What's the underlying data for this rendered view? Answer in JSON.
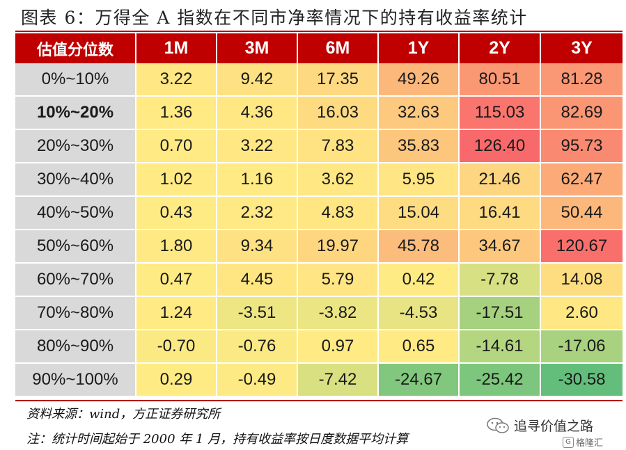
{
  "title": "图表 6：万得全 A 指数在不同市净率情况下的持有收益率统计",
  "table": {
    "headers": [
      "估值分位数",
      "1M",
      "3M",
      "6M",
      "1Y",
      "2Y",
      "3Y"
    ],
    "rows": [
      {
        "label": "0%~10%",
        "bold": false,
        "values": [
          "3.22",
          "9.42",
          "17.35",
          "49.26",
          "80.51",
          "81.28"
        ]
      },
      {
        "label": "10%~20%",
        "bold": true,
        "values": [
          "1.36",
          "4.36",
          "16.03",
          "32.63",
          "115.03",
          "82.69"
        ]
      },
      {
        "label": "20%~30%",
        "bold": false,
        "values": [
          "0.70",
          "3.22",
          "7.83",
          "35.83",
          "126.40",
          "95.73"
        ]
      },
      {
        "label": "30%~40%",
        "bold": false,
        "values": [
          "1.02",
          "1.16",
          "3.62",
          "5.95",
          "21.46",
          "62.47"
        ]
      },
      {
        "label": "40%~50%",
        "bold": false,
        "values": [
          "0.43",
          "2.32",
          "4.83",
          "15.04",
          "16.41",
          "50.44"
        ]
      },
      {
        "label": "50%~60%",
        "bold": false,
        "values": [
          "1.80",
          "9.34",
          "19.97",
          "45.78",
          "34.67",
          "120.67"
        ]
      },
      {
        "label": "60%~70%",
        "bold": false,
        "values": [
          "0.47",
          "4.45",
          "5.79",
          "0.42",
          "-7.78",
          "14.08"
        ]
      },
      {
        "label": "70%~80%",
        "bold": false,
        "values": [
          "1.24",
          "-3.51",
          "-3.82",
          "-4.53",
          "-17.51",
          "2.60"
        ]
      },
      {
        "label": "80%~90%",
        "bold": false,
        "values": [
          "-0.70",
          "-0.76",
          "0.97",
          "0.65",
          "-14.61",
          "-17.06"
        ]
      },
      {
        "label": "90%~100%",
        "bold": false,
        "values": [
          "0.29",
          "-0.49",
          "-7.42",
          "-24.67",
          "-25.42",
          "-30.58"
        ]
      }
    ]
  },
  "source_note": "资料来源：wind，方正证券研究所",
  "footnote": "注：统计时间起始于 2000 年 1 月，持有收益率按日度数据平均计算",
  "watermark": "追寻价值之路",
  "watermark_sub": "格隆汇",
  "colors": {
    "header_bg": "#c00000",
    "rule": "#b40000",
    "rowlabel_bg": "#d9d9d9",
    "heat_high": "#f8696b",
    "heat_mid": "#ffeb84",
    "heat_low": "#63be7b"
  },
  "icons": {
    "watermark_logo": "wechat-icon",
    "sub_logo": "gelonghui-icon"
  }
}
